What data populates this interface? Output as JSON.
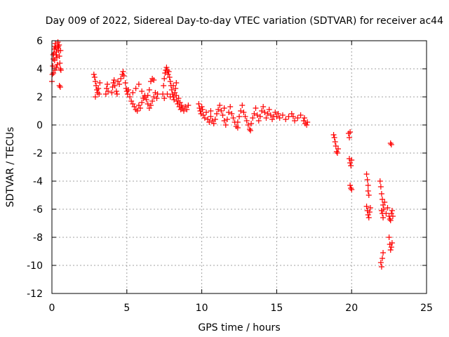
{
  "chart_data": {
    "type": "scatter",
    "title": "Day 009 of 2022, Sidereal Day-to-day VTEC variation (SDTVAR) for receiver ac44",
    "xlabel": "GPS time / hours",
    "ylabel": "SDTVAR / TECUs",
    "xlim": [
      0,
      25
    ],
    "ylim": [
      -12,
      6
    ],
    "xticks": [
      0,
      5,
      10,
      15,
      20,
      25
    ],
    "yticks": [
      -12,
      -10,
      -8,
      -6,
      -4,
      -2,
      0,
      2,
      4,
      6
    ],
    "grid": true,
    "marker": "+",
    "color": "#ff0000",
    "series": [
      {
        "name": "SDTVAR",
        "points": [
          [
            0.0,
            3.1
          ],
          [
            0.03,
            3.6
          ],
          [
            0.06,
            4.2
          ],
          [
            0.1,
            4.7
          ],
          [
            0.13,
            5.1
          ],
          [
            0.16,
            5.4
          ],
          [
            0.2,
            5.6
          ],
          [
            0.23,
            5.8
          ],
          [
            0.26,
            5.5
          ],
          [
            0.3,
            5.2
          ],
          [
            0.33,
            4.8
          ],
          [
            0.36,
            4.3
          ],
          [
            0.4,
            5.9
          ],
          [
            0.43,
            5.6
          ],
          [
            0.46,
            5.3
          ],
          [
            0.5,
            4.9
          ],
          [
            0.53,
            4.4
          ],
          [
            0.56,
            4.0
          ],
          [
            0.6,
            3.9
          ],
          [
            0.1,
            3.7
          ],
          [
            0.2,
            3.9
          ],
          [
            0.3,
            4.1
          ],
          [
            0.5,
            2.8
          ],
          [
            0.56,
            2.7
          ],
          [
            0.08,
            5.0
          ],
          [
            0.18,
            4.6
          ],
          [
            0.28,
            5.0
          ],
          [
            0.38,
            5.5
          ],
          [
            0.48,
            5.7
          ],
          [
            0.58,
            5.3
          ],
          [
            2.8,
            3.6
          ],
          [
            2.85,
            3.4
          ],
          [
            2.9,
            3.1
          ],
          [
            2.95,
            2.8
          ],
          [
            3.0,
            2.5
          ],
          [
            3.05,
            2.3
          ],
          [
            3.1,
            2.6
          ],
          [
            3.15,
            2.2
          ],
          [
            3.2,
            3.0
          ],
          [
            2.9,
            2.0
          ],
          [
            3.6,
            2.2
          ],
          [
            3.65,
            2.6
          ],
          [
            3.7,
            2.9
          ],
          [
            3.75,
            2.4
          ],
          [
            4.0,
            2.3
          ],
          [
            4.05,
            2.7
          ],
          [
            4.1,
            3.0
          ],
          [
            4.15,
            3.2
          ],
          [
            4.2,
            2.8
          ],
          [
            4.3,
            2.4
          ],
          [
            4.35,
            2.2
          ],
          [
            4.4,
            3.1
          ],
          [
            4.5,
            2.9
          ],
          [
            4.6,
            3.3
          ],
          [
            4.7,
            3.6
          ],
          [
            4.75,
            3.8
          ],
          [
            4.8,
            3.5
          ],
          [
            4.9,
            3.0
          ],
          [
            4.95,
            2.6
          ],
          [
            5.0,
            2.4
          ],
          [
            5.05,
            2.2
          ],
          [
            5.1,
            2.5
          ],
          [
            5.2,
            2.0
          ],
          [
            5.3,
            1.7
          ],
          [
            5.4,
            1.5
          ],
          [
            5.5,
            1.3
          ],
          [
            5.6,
            1.1
          ],
          [
            5.7,
            1.0
          ],
          [
            5.8,
            1.4
          ],
          [
            5.9,
            1.2
          ],
          [
            6.0,
            1.6
          ],
          [
            6.1,
            1.9
          ],
          [
            6.2,
            2.1
          ],
          [
            6.3,
            1.8
          ],
          [
            6.4,
            1.5
          ],
          [
            6.5,
            1.2
          ],
          [
            6.6,
            1.4
          ],
          [
            6.7,
            1.7
          ],
          [
            6.8,
            2.0
          ],
          [
            6.9,
            2.3
          ],
          [
            7.0,
            1.9
          ],
          [
            7.05,
            2.2
          ],
          [
            6.6,
            3.1
          ],
          [
            6.7,
            3.3
          ],
          [
            6.8,
            3.2
          ],
          [
            5.4,
            2.3
          ],
          [
            5.6,
            2.6
          ],
          [
            5.8,
            2.9
          ],
          [
            6.0,
            2.4
          ],
          [
            6.2,
            2.0
          ],
          [
            6.4,
            2.1
          ],
          [
            6.5,
            2.5
          ],
          [
            7.4,
            2.2
          ],
          [
            7.45,
            2.8
          ],
          [
            7.5,
            3.3
          ],
          [
            7.55,
            3.7
          ],
          [
            7.6,
            3.9
          ],
          [
            7.65,
            4.1
          ],
          [
            7.7,
            3.9
          ],
          [
            7.75,
            3.6
          ],
          [
            7.8,
            3.8
          ],
          [
            7.85,
            3.4
          ],
          [
            7.9,
            3.1
          ],
          [
            7.95,
            2.8
          ],
          [
            8.0,
            2.5
          ],
          [
            8.05,
            2.2
          ],
          [
            8.1,
            2.0
          ],
          [
            8.15,
            1.8
          ],
          [
            8.2,
            2.3
          ],
          [
            8.25,
            2.6
          ],
          [
            8.3,
            2.1
          ],
          [
            8.35,
            1.7
          ],
          [
            8.4,
            1.5
          ],
          [
            8.45,
            1.9
          ],
          [
            8.5,
            1.3
          ],
          [
            8.55,
            1.6
          ],
          [
            8.6,
            1.1
          ],
          [
            8.65,
            1.4
          ],
          [
            8.7,
            1.2
          ],
          [
            8.8,
            1.0
          ],
          [
            8.9,
            1.3
          ],
          [
            9.0,
            1.1
          ],
          [
            9.1,
            1.4
          ],
          [
            7.5,
            1.9
          ],
          [
            7.7,
            2.2
          ],
          [
            7.9,
            2.0
          ],
          [
            8.1,
            2.8
          ],
          [
            8.3,
            3.0
          ],
          [
            9.8,
            1.5
          ],
          [
            9.85,
            1.2
          ],
          [
            9.9,
            1.0
          ],
          [
            9.95,
            0.8
          ],
          [
            10.0,
            1.3
          ],
          [
            10.05,
            1.1
          ],
          [
            10.1,
            0.7
          ],
          [
            10.2,
            0.5
          ],
          [
            10.3,
            0.9
          ],
          [
            10.4,
            0.4
          ],
          [
            10.5,
            0.2
          ],
          [
            10.6,
            0.6
          ],
          [
            10.7,
            0.3
          ],
          [
            10.8,
            0.1
          ],
          [
            10.9,
            0.4
          ],
          [
            11.0,
            0.8
          ],
          [
            11.1,
            1.1
          ],
          [
            11.2,
            1.4
          ],
          [
            11.3,
            1.0
          ],
          [
            11.4,
            0.7
          ],
          [
            11.5,
            0.3
          ],
          [
            11.6,
            0.0
          ],
          [
            11.7,
            0.4
          ],
          [
            11.8,
            0.9
          ],
          [
            11.9,
            1.3
          ],
          [
            12.0,
            0.8
          ],
          [
            12.1,
            0.5
          ],
          [
            12.2,
            0.2
          ],
          [
            12.3,
            -0.1
          ],
          [
            12.4,
            0.2
          ],
          [
            12.5,
            0.6
          ],
          [
            12.6,
            1.0
          ],
          [
            12.7,
            1.4
          ],
          [
            12.8,
            0.9
          ],
          [
            12.9,
            0.6
          ],
          [
            13.0,
            0.3
          ],
          [
            13.1,
            0.0
          ],
          [
            13.2,
            -0.3
          ],
          [
            13.3,
            0.1
          ],
          [
            13.4,
            0.5
          ],
          [
            13.5,
            0.8
          ],
          [
            13.6,
            1.2
          ],
          [
            13.7,
            0.7
          ],
          [
            13.8,
            0.3
          ],
          [
            13.9,
            0.6
          ],
          [
            14.0,
            1.0
          ],
          [
            14.1,
            1.3
          ],
          [
            14.2,
            0.9
          ],
          [
            14.3,
            0.5
          ],
          [
            14.4,
            0.8
          ],
          [
            14.5,
            1.1
          ],
          [
            14.6,
            0.7
          ],
          [
            14.7,
            0.4
          ],
          [
            14.8,
            0.6
          ],
          [
            14.9,
            0.9
          ],
          [
            15.0,
            0.6
          ],
          [
            15.1,
            0.8
          ],
          [
            15.2,
            0.5
          ],
          [
            15.4,
            0.7
          ],
          [
            15.6,
            0.4
          ],
          [
            15.8,
            0.6
          ],
          [
            16.0,
            0.8
          ],
          [
            16.1,
            0.6
          ],
          [
            16.2,
            0.3
          ],
          [
            16.4,
            0.5
          ],
          [
            16.6,
            0.7
          ],
          [
            16.8,
            0.3
          ],
          [
            16.9,
            0.1
          ],
          [
            17.0,
            0.0
          ],
          [
            17.05,
            0.2
          ],
          [
            16.85,
            0.5
          ],
          [
            12.4,
            -0.2
          ],
          [
            13.25,
            -0.4
          ],
          [
            10.6,
            1.0
          ],
          [
            11.5,
            1.2
          ],
          [
            18.8,
            -0.7
          ],
          [
            18.85,
            -0.9
          ],
          [
            18.9,
            -1.2
          ],
          [
            18.95,
            -1.5
          ],
          [
            19.0,
            -1.9
          ],
          [
            19.05,
            -2.0
          ],
          [
            19.1,
            -1.7
          ],
          [
            19.8,
            -0.6
          ],
          [
            19.85,
            -0.9
          ],
          [
            19.9,
            -0.5
          ],
          [
            19.85,
            -2.4
          ],
          [
            19.9,
            -2.7
          ],
          [
            19.95,
            -2.9
          ],
          [
            20.0,
            -2.5
          ],
          [
            19.9,
            -4.3
          ],
          [
            19.95,
            -4.5
          ],
          [
            20.0,
            -4.6
          ],
          [
            21.0,
            -3.5
          ],
          [
            21.05,
            -3.9
          ],
          [
            21.1,
            -4.3
          ],
          [
            21.15,
            -5.0
          ],
          [
            21.0,
            -5.8
          ],
          [
            21.05,
            -6.1
          ],
          [
            21.1,
            -6.4
          ],
          [
            21.15,
            -6.6
          ],
          [
            21.2,
            -6.2
          ],
          [
            21.25,
            -5.9
          ],
          [
            21.1,
            -4.7
          ],
          [
            21.9,
            -4.0
          ],
          [
            21.95,
            -4.4
          ],
          [
            22.0,
            -4.9
          ],
          [
            22.05,
            -5.3
          ],
          [
            22.1,
            -5.7
          ],
          [
            22.0,
            -6.1
          ],
          [
            22.05,
            -6.3
          ],
          [
            22.1,
            -6.6
          ],
          [
            22.15,
            -6.0
          ],
          [
            22.2,
            -5.5
          ],
          [
            21.95,
            -9.8
          ],
          [
            22.0,
            -10.1
          ],
          [
            22.05,
            -9.5
          ],
          [
            22.1,
            -9.1
          ],
          [
            22.3,
            -6.3
          ],
          [
            22.4,
            -5.9
          ],
          [
            22.5,
            -6.5
          ],
          [
            22.55,
            -6.7
          ],
          [
            22.6,
            -6.8
          ],
          [
            22.65,
            -6.3
          ],
          [
            22.7,
            -6.1
          ],
          [
            22.75,
            -6.5
          ],
          [
            22.5,
            -8.0
          ],
          [
            22.55,
            -8.5
          ],
          [
            22.6,
            -8.9
          ],
          [
            22.65,
            -8.7
          ],
          [
            22.7,
            -8.4
          ],
          [
            22.6,
            -1.3
          ],
          [
            22.65,
            -1.4
          ]
        ]
      }
    ]
  }
}
